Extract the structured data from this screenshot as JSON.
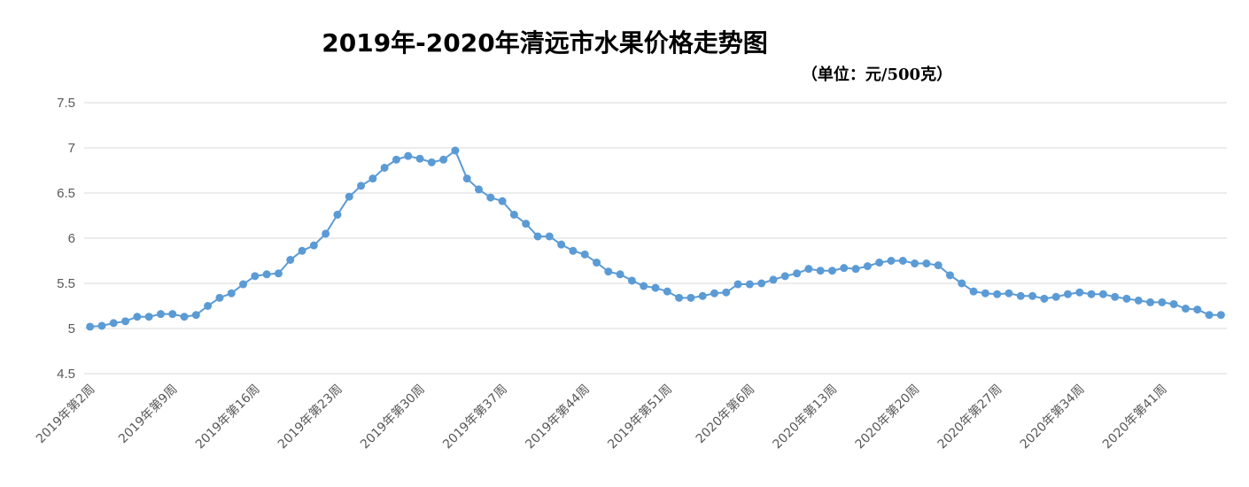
{
  "chart_data": {
    "type": "line",
    "title": "2019年-2020年清远市水果价格走势图",
    "subtitle": "（单位：元/500克）",
    "xlabel": "",
    "ylabel": "",
    "ylim": [
      4.5,
      7.5
    ],
    "yticks": [
      "7.5",
      "7",
      "6.5",
      "6",
      "5.5",
      "5",
      "4.5"
    ],
    "xtick_labels": [
      "2019年第2周",
      "2019年第9周",
      "2019年第16周",
      "2019年第23周",
      "2019年第30周",
      "2019年第37周",
      "2019年第44周",
      "2019年第51周",
      "2020年第6周",
      "2020年第13周",
      "2020年第20周",
      "2020年第27周",
      "2020年第34周",
      "2020年第41周"
    ],
    "xtick_every": 7,
    "grid": true,
    "legend": "none",
    "series": [
      {
        "color": "#5B9BD5",
        "values": [
          5.02,
          5.03,
          5.06,
          5.08,
          5.13,
          5.13,
          5.16,
          5.16,
          5.13,
          5.15,
          5.25,
          5.34,
          5.39,
          5.49,
          5.58,
          5.6,
          5.61,
          5.76,
          5.86,
          5.92,
          6.05,
          6.26,
          6.46,
          6.58,
          6.66,
          6.78,
          6.87,
          6.91,
          6.88,
          6.84,
          6.87,
          6.97,
          6.66,
          6.54,
          6.45,
          6.41,
          6.26,
          6.16,
          6.02,
          6.02,
          5.93,
          5.86,
          5.82,
          5.73,
          5.63,
          5.6,
          5.53,
          5.47,
          5.45,
          5.41,
          5.34,
          5.34,
          5.36,
          5.39,
          5.4,
          5.49,
          5.49,
          5.5,
          5.54,
          5.58,
          5.61,
          5.66,
          5.64,
          5.64,
          5.67,
          5.66,
          5.69,
          5.73,
          5.75,
          5.75,
          5.72,
          5.72,
          5.7,
          5.59,
          5.5,
          5.41,
          5.39,
          5.38,
          5.39,
          5.36,
          5.36,
          5.33,
          5.35,
          5.38,
          5.4,
          5.38,
          5.38,
          5.35,
          5.33,
          5.31,
          5.29,
          5.29,
          5.27,
          5.22,
          5.21,
          5.15,
          5.15
        ]
      }
    ]
  }
}
